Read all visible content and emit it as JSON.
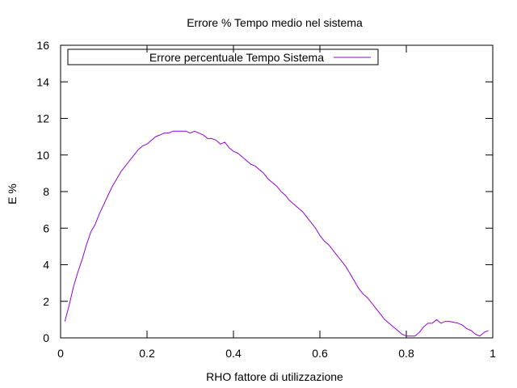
{
  "chart_data": {
    "type": "line",
    "title": "Errore % Tempo medio nel sistema",
    "xlabel": "RHO fattore di utilizzazione",
    "ylabel": "E %",
    "xlim": [
      0,
      1
    ],
    "ylim": [
      0,
      16
    ],
    "x_ticks": [
      0,
      0.2,
      0.4,
      0.6,
      0.8,
      1
    ],
    "x_tick_labels": [
      "0",
      "0.2",
      "0.4",
      "0.6",
      "0.8",
      "1"
    ],
    "y_ticks": [
      0,
      2,
      4,
      6,
      8,
      10,
      12,
      14,
      16
    ],
    "y_tick_labels": [
      "0",
      "2",
      "4",
      "6",
      "8",
      "10",
      "12",
      "14",
      "16"
    ],
    "grid": false,
    "legend_position": "top-left",
    "series": [
      {
        "name": "Errore percentuale Tempo Sistema",
        "color": "#9400d3",
        "x": [
          0.01,
          0.02,
          0.03,
          0.04,
          0.05,
          0.06,
          0.07,
          0.08,
          0.09,
          0.1,
          0.11,
          0.12,
          0.13,
          0.14,
          0.15,
          0.16,
          0.17,
          0.18,
          0.19,
          0.2,
          0.21,
          0.22,
          0.23,
          0.24,
          0.25,
          0.26,
          0.27,
          0.28,
          0.29,
          0.3,
          0.31,
          0.32,
          0.33,
          0.34,
          0.35,
          0.36,
          0.37,
          0.38,
          0.39,
          0.4,
          0.41,
          0.42,
          0.43,
          0.44,
          0.45,
          0.46,
          0.47,
          0.48,
          0.49,
          0.5,
          0.51,
          0.52,
          0.53,
          0.54,
          0.55,
          0.56,
          0.57,
          0.58,
          0.59,
          0.6,
          0.61,
          0.62,
          0.63,
          0.64,
          0.65,
          0.66,
          0.67,
          0.68,
          0.69,
          0.7,
          0.71,
          0.72,
          0.73,
          0.74,
          0.75,
          0.76,
          0.77,
          0.78,
          0.79,
          0.8,
          0.81,
          0.82,
          0.83,
          0.84,
          0.85,
          0.86,
          0.87,
          0.88,
          0.89,
          0.9,
          0.91,
          0.92,
          0.93,
          0.94,
          0.95,
          0.96,
          0.97,
          0.98,
          0.99
        ],
        "y": [
          0.9,
          1.8,
          2.8,
          3.6,
          4.3,
          5.1,
          5.8,
          6.2,
          6.8,
          7.3,
          7.8,
          8.3,
          8.7,
          9.1,
          9.4,
          9.7,
          10.0,
          10.3,
          10.5,
          10.6,
          10.8,
          11.0,
          11.1,
          11.2,
          11.2,
          11.3,
          11.3,
          11.3,
          11.3,
          11.2,
          11.3,
          11.2,
          11.1,
          10.9,
          10.9,
          10.8,
          10.6,
          10.7,
          10.4,
          10.2,
          10.1,
          9.9,
          9.7,
          9.5,
          9.4,
          9.2,
          9.0,
          8.7,
          8.5,
          8.3,
          8.0,
          7.8,
          7.5,
          7.3,
          7.1,
          6.9,
          6.6,
          6.3,
          6.0,
          5.6,
          5.3,
          5.1,
          4.8,
          4.5,
          4.2,
          3.9,
          3.5,
          3.1,
          2.7,
          2.4,
          2.2,
          1.9,
          1.6,
          1.3,
          1.0,
          0.8,
          0.6,
          0.4,
          0.2,
          0.1,
          0.1,
          0.1,
          0.3,
          0.6,
          0.8,
          0.8,
          1.0,
          0.8,
          0.9,
          0.9,
          0.85,
          0.8,
          0.7,
          0.5,
          0.4,
          0.2,
          0.1,
          0.3,
          0.4
        ]
      }
    ]
  }
}
